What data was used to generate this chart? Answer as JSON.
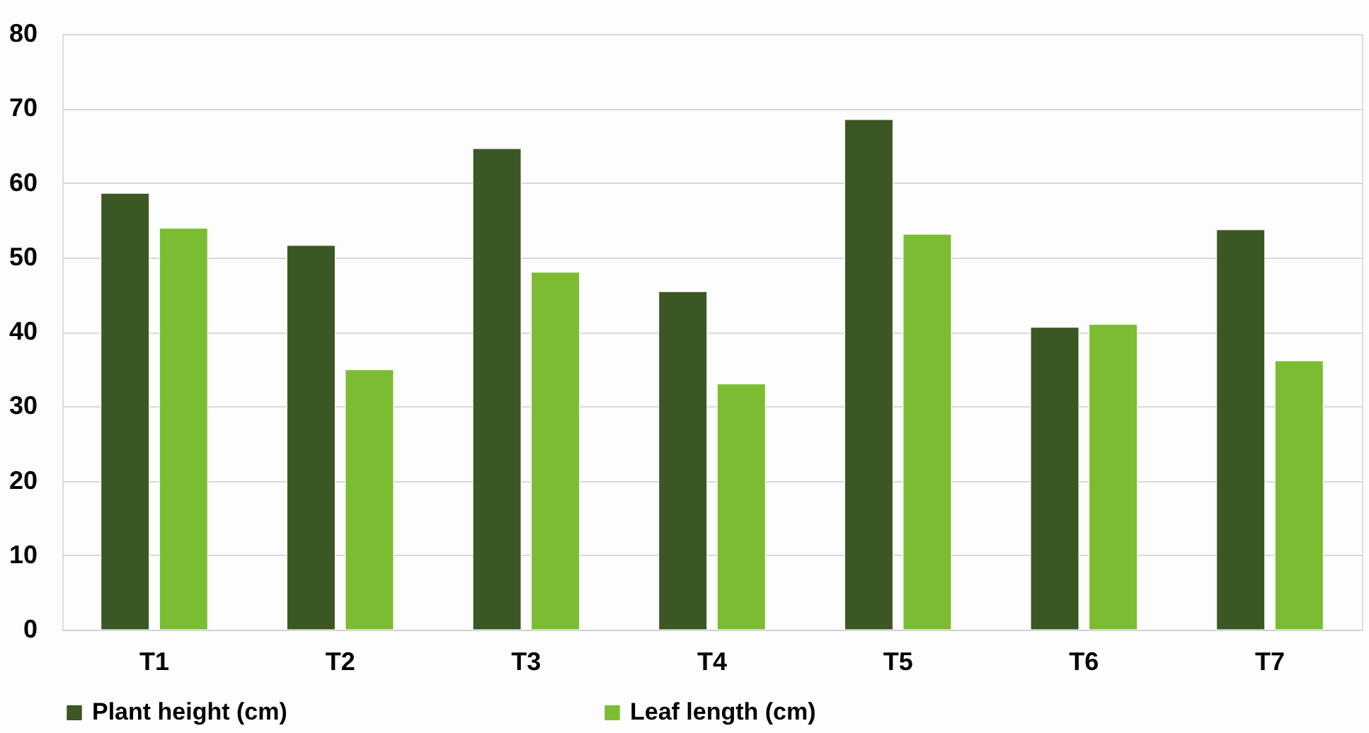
{
  "chart_data": {
    "type": "bar",
    "categories": [
      "T1",
      "T2",
      "T3",
      "T4",
      "T5",
      "T6",
      "T7"
    ],
    "series": [
      {
        "name": "Plant height (cm)",
        "color": "#3b5723",
        "values": [
          58.6,
          51.6,
          64.6,
          45.4,
          68.5,
          40.6,
          53.7
        ]
      },
      {
        "name": "Leaf length (cm)",
        "color": "#7cbc33",
        "values": [
          53.9,
          34.9,
          48.0,
          33.0,
          53.1,
          41.0,
          36.1
        ]
      }
    ],
    "ylim": [
      0,
      80
    ],
    "yticks": [
      0,
      10,
      20,
      30,
      40,
      50,
      60,
      70,
      80
    ],
    "grid": "y",
    "legend": "bottom"
  }
}
